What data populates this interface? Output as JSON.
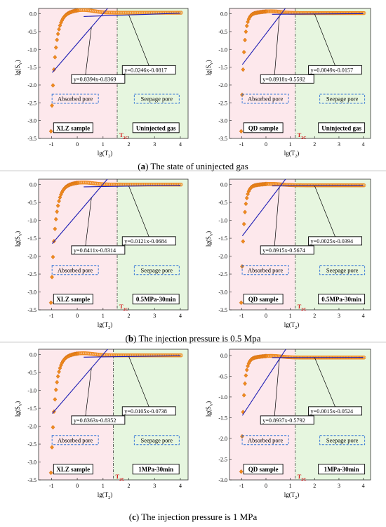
{
  "captions": [
    {
      "letter": "a",
      "text": " The state of uninjected gas"
    },
    {
      "letter": "b",
      "text": " The injection pressure is 0.5 Mpa"
    },
    {
      "letter": "c",
      "text": " The injection pressure is 1 MPa"
    }
  ],
  "colors": {
    "absorbed_bg": "#fde8ec",
    "seepage_bg": "#e6f6df",
    "fit_line": "#1c1cb4",
    "marker": "#ef8a1e",
    "marker_edge": "#c8600a",
    "label_box": "#2a6fd6"
  },
  "chart_data": [
    {
      "type": "scatter",
      "panel": "a",
      "sample": "XLZ sample",
      "condition": "Uninjected gas",
      "xlabel": "lg(T2)",
      "ylabel": "lg(SV)",
      "xlim": [
        -1.5,
        4.3
      ],
      "ylim": [
        -3.5,
        0.15
      ],
      "xticks": [
        "-1",
        "0",
        "1",
        "2",
        "3",
        "4"
      ],
      "yticks": [
        "0.0",
        "-0.5",
        "-1.0",
        "-1.5",
        "-2.0",
        "-2.5",
        "-3.0",
        "-3.5"
      ],
      "t2c_label": "T2C",
      "t2c_x": 1.55,
      "region_labels": {
        "absorbed": "Absorbed pore",
        "seepage": "Seepage pore"
      },
      "fit_absorbed": {
        "label": "y=0.8394x-0.8369",
        "slope": 0.8394,
        "intercept": -0.8369
      },
      "fit_seepage": {
        "label": "y=0.0246x-0.0817",
        "slope": 0.0246,
        "intercept": -0.0817
      },
      "curve": {
        "y_min": -3.3,
        "y_end": 0.03,
        "rise_rate": 6.3,
        "hump": 0.08
      }
    },
    {
      "type": "scatter",
      "panel": "a",
      "sample": "QD sample",
      "condition": "Uninjected gas",
      "xlabel": "lg(T2)",
      "ylabel": "lg(SV)",
      "xlim": [
        -1.5,
        4.3
      ],
      "ylim": [
        -3.5,
        0.15
      ],
      "xticks": [
        "-1",
        "0",
        "1",
        "2",
        "3",
        "4"
      ],
      "yticks": [
        "0.0",
        "-0.5",
        "-1.0",
        "-1.5",
        "-2.0",
        "-2.5",
        "-3.0",
        "-3.5"
      ],
      "t2c_label": "T2C",
      "t2c_x": 1.2,
      "region_labels": {
        "absorbed": "Absorbed pore",
        "seepage": "Seepage pore"
      },
      "fit_absorbed": {
        "label": "y=0.8918x-0.5592",
        "slope": 0.8918,
        "intercept": -0.5592
      },
      "fit_seepage": {
        "label": "y=0.0049x-0.0157",
        "slope": 0.0049,
        "intercept": -0.0157
      },
      "curve": {
        "y_min": -3.3,
        "y_end": 0.02,
        "rise_rate": 9.5,
        "hump": 0.05
      }
    },
    {
      "type": "scatter",
      "panel": "b",
      "sample": "XLZ sample",
      "condition": "0.5MPa-30min",
      "xlabel": "lg(T2)",
      "ylabel": "lg(SV)",
      "xlim": [
        -1.5,
        4.3
      ],
      "ylim": [
        -3.5,
        0.15
      ],
      "xticks": [
        "-1",
        "0",
        "1",
        "2",
        "3",
        "4"
      ],
      "yticks": [
        "0.0",
        "-0.5",
        "-1.0",
        "-1.5",
        "-2.0",
        "-2.5",
        "-3.0",
        "-3.5"
      ],
      "t2c_label": "T2C",
      "t2c_x": 1.55,
      "region_labels": {
        "absorbed": "Absorbed pore",
        "seepage": "Seepage pore"
      },
      "fit_absorbed": {
        "label": "y=0.8411x-0.8314",
        "slope": 0.8411,
        "intercept": -0.8314
      },
      "fit_seepage": {
        "label": "y=0.0121x-0.0684",
        "slope": 0.0121,
        "intercept": -0.0684
      },
      "curve": {
        "y_min": -3.3,
        "y_end": 0.0,
        "rise_rate": 6.3,
        "hump": 0.06
      }
    },
    {
      "type": "scatter",
      "panel": "b",
      "sample": "QD sample",
      "condition": "0.5MPa-30min",
      "xlabel": "lg(T2)",
      "ylabel": "lg(SV)",
      "xlim": [
        -1.5,
        4.3
      ],
      "ylim": [
        -3.5,
        0.15
      ],
      "xticks": [
        "-1",
        "0",
        "1",
        "2",
        "3",
        "4"
      ],
      "yticks": [
        "0.0",
        "-0.5",
        "-1.0",
        "-1.5",
        "-2.0",
        "-2.5",
        "-3.0",
        "-3.5"
      ],
      "t2c_label": "T2C",
      "t2c_x": 1.2,
      "region_labels": {
        "absorbed": "Absorbed pore",
        "seepage": "Seepage pore"
      },
      "fit_absorbed": {
        "label": "y=0.8915x-0.5674",
        "slope": 0.8915,
        "intercept": -0.5674
      },
      "fit_seepage": {
        "label": "y=0.0025x-0.0394",
        "slope": 0.0025,
        "intercept": -0.0394
      },
      "curve": {
        "y_min": -3.3,
        "y_end": -0.02,
        "rise_rate": 9.5,
        "hump": 0.04
      }
    },
    {
      "type": "scatter",
      "panel": "c",
      "sample": "XLZ sample",
      "condition": "1MPa-30min",
      "xlabel": "lg(T2)",
      "ylabel": "lg(SV)",
      "xlim": [
        -1.5,
        4.3
      ],
      "ylim": [
        -3.5,
        0.15
      ],
      "xticks": [
        "-1",
        "0",
        "1",
        "2",
        "3",
        "4"
      ],
      "yticks": [
        "0.0",
        "-0.5",
        "-1.0",
        "-1.5",
        "-2.0",
        "-2.5",
        "-3.0",
        "-3.5"
      ],
      "t2c_label": "T2C",
      "t2c_x": 1.4,
      "region_labels": {
        "absorbed": "Absorbed pore",
        "seepage": "Seepage pore"
      },
      "fit_absorbed": {
        "label": "y=0.8363x-0.8352",
        "slope": 0.8363,
        "intercept": -0.8352
      },
      "fit_seepage": {
        "label": "y=0.0105x-0.0738",
        "slope": 0.0105,
        "intercept": -0.0738
      },
      "curve": {
        "y_min": -3.3,
        "y_end": -0.02,
        "rise_rate": 6.3,
        "hump": 0.06
      }
    },
    {
      "type": "scatter",
      "panel": "c",
      "sample": "QD sample",
      "condition": "1MPa-30min",
      "xlabel": "lg(T2)",
      "ylabel": "lg(SV)",
      "xlim": [
        -1.5,
        4.3
      ],
      "ylim": [
        -3.0,
        0.15
      ],
      "xticks": [
        "-1",
        "0",
        "1",
        "2",
        "3",
        "4"
      ],
      "yticks": [
        "0.0",
        "-0.5",
        "-1.0",
        "-1.5",
        "-2.0",
        "-2.5",
        "-3.0"
      ],
      "t2c_label": "T2C",
      "t2c_x": 1.2,
      "region_labels": {
        "absorbed": "Absorbed pore",
        "seepage": "Seepage pore"
      },
      "fit_absorbed": {
        "label": "y=0.8937x-0.5792",
        "slope": 0.8937,
        "intercept": -0.5792
      },
      "fit_seepage": {
        "label": "y=0.0015x-0.0524",
        "slope": 0.0015,
        "intercept": -0.0524
      },
      "curve": {
        "y_min": -2.8,
        "y_end": -0.05,
        "rise_rate": 9.5,
        "hump": 0.04
      }
    }
  ]
}
